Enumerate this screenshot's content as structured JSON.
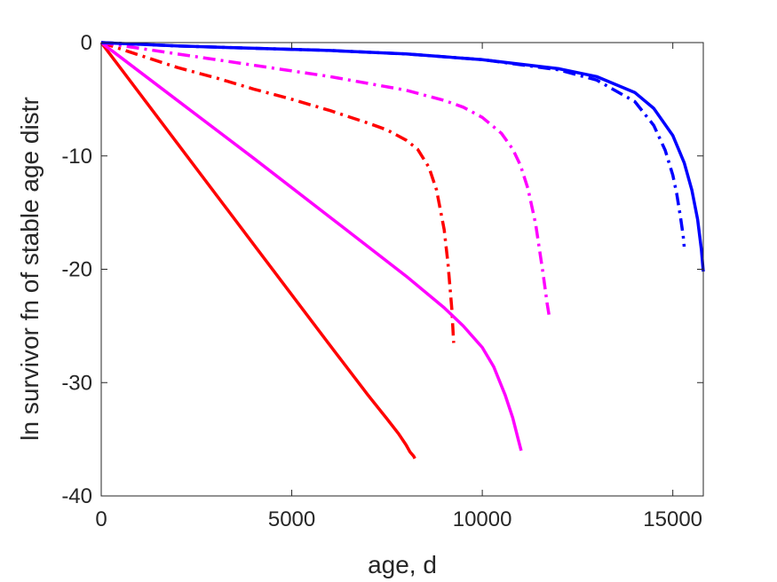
{
  "chart_data": {
    "type": "line",
    "title": "",
    "xlabel": "age, d",
    "ylabel": "ln survivor fn of stable age distr",
    "xlim": [
      0,
      15800
    ],
    "ylim": [
      -40,
      0
    ],
    "xticks": [
      0,
      5000,
      10000,
      15000
    ],
    "yticks": [
      0,
      -10,
      -20,
      -30,
      -40
    ],
    "grid": false,
    "legend": "none",
    "series": [
      {
        "color": "#ff0000",
        "style": "solid",
        "x": [
          0,
          2000,
          4000,
          6000,
          7000,
          7500,
          7800,
          8000,
          8100,
          8200,
          8230
        ],
        "y": [
          0,
          -8.9,
          -17.8,
          -26.7,
          -31.1,
          -33.2,
          -34.5,
          -35.5,
          -36.1,
          -36.5,
          -36.7
        ]
      },
      {
        "color": "#ff0000",
        "style": "dashdot",
        "x": [
          0,
          1000,
          2000,
          3000,
          4000,
          5000,
          6000,
          7000,
          7500,
          8000,
          8300,
          8600,
          8800,
          9000,
          9100,
          9200,
          9250
        ],
        "y": [
          0,
          -1.1,
          -2.2,
          -3.1,
          -4.1,
          -5.0,
          -6.0,
          -7.1,
          -7.7,
          -8.6,
          -9.4,
          -11.0,
          -13.0,
          -16.5,
          -19.5,
          -23.5,
          -26.5
        ]
      },
      {
        "color": "#ff00ff",
        "style": "solid",
        "x": [
          0,
          2000,
          4000,
          6000,
          8000,
          9000,
          9500,
          10000,
          10300,
          10600,
          10800,
          10950,
          11020
        ],
        "y": [
          0,
          -5.1,
          -10.2,
          -15.4,
          -20.6,
          -23.4,
          -25.0,
          -26.9,
          -28.6,
          -31.1,
          -33.1,
          -35.1,
          -36.0
        ]
      },
      {
        "color": "#ff00ff",
        "style": "dashdot",
        "x": [
          0,
          2000,
          4000,
          6000,
          8000,
          9000,
          9500,
          10000,
          10500,
          10800,
          11000,
          11200,
          11400,
          11600,
          11700,
          11750
        ],
        "y": [
          0,
          -1.0,
          -2.0,
          -3.0,
          -4.2,
          -5.1,
          -5.7,
          -6.6,
          -8.0,
          -9.4,
          -10.8,
          -12.9,
          -16.0,
          -20.5,
          -23.0,
          -24.0
        ]
      },
      {
        "color": "#0000ff",
        "style": "solid",
        "x": [
          0,
          2000,
          4000,
          6000,
          8000,
          10000,
          12000,
          13000,
          14000,
          14500,
          15000,
          15300,
          15500,
          15650,
          15750,
          15800
        ],
        "y": [
          0,
          -0.3,
          -0.5,
          -0.7,
          -1.0,
          -1.5,
          -2.3,
          -3.0,
          -4.4,
          -5.8,
          -8.2,
          -10.6,
          -13.0,
          -15.6,
          -18.3,
          -20.2
        ]
      },
      {
        "color": "#0000ff",
        "style": "dashdot",
        "x": [
          0,
          2000,
          4000,
          6000,
          8000,
          10000,
          12000,
          13000,
          14000,
          14500,
          14800,
          15000,
          15100,
          15200,
          15270,
          15300
        ],
        "y": [
          0,
          -0.3,
          -0.5,
          -0.7,
          -1.0,
          -1.5,
          -2.4,
          -3.3,
          -5.2,
          -7.3,
          -9.5,
          -11.7,
          -13.3,
          -15.4,
          -17.0,
          -18.0
        ]
      }
    ]
  }
}
